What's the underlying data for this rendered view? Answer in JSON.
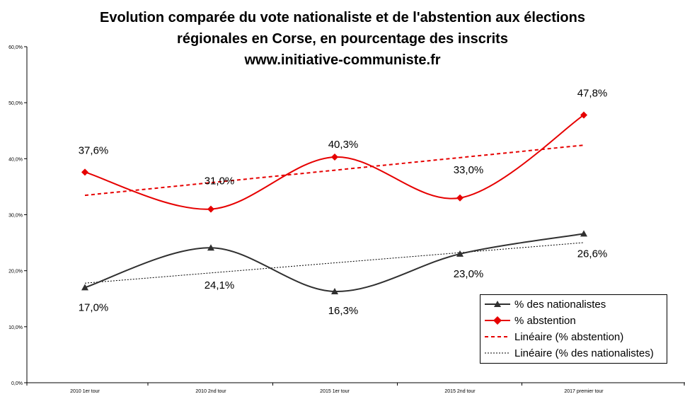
{
  "header": {
    "line1": "Evolution comparée du vote nationaliste et de l'abstention aux élections",
    "line2": "régionales en Corse, en pourcentage des inscrits",
    "line3": "www.initiative-communiste.fr"
  },
  "colors": {
    "abstention": "#e60000",
    "nationalistes": "#303030",
    "trend_abstention": "#e60000",
    "trend_nationalistes": "#000000"
  },
  "chart_data": {
    "type": "line",
    "title": "Evolution comparée du vote nationaliste et de l'abstention aux élections régionales en Corse, en pourcentage des inscrits",
    "categories": [
      "2010 1er tour",
      "2010 2nd tour",
      "2015 1er tour",
      "2015 2nd tour",
      "2017 premier tour"
    ],
    "ylim": [
      0,
      60
    ],
    "yticks": [
      0,
      10,
      20,
      30,
      40,
      50,
      60
    ],
    "ytick_labels": [
      "0,0%",
      "10,0%",
      "20,0%",
      "30,0%",
      "40,0%",
      "50,0%",
      "60,0%"
    ],
    "grid": false,
    "legend_position": "bottom-right",
    "series": [
      {
        "name": "% des nationalistes",
        "values": [
          17.0,
          24.1,
          16.3,
          23.0,
          26.6
        ],
        "labels": [
          "17,0%",
          "24,1%",
          "16,3%",
          "23,0%",
          "26,6%"
        ],
        "marker": "triangle",
        "smooth": true
      },
      {
        "name": "% abstention",
        "values": [
          37.6,
          31.0,
          40.3,
          33.0,
          47.8
        ],
        "labels": [
          "37,6%",
          "31,0%",
          "40,3%",
          "33,0%",
          "47,8%"
        ],
        "marker": "diamond",
        "smooth": true
      }
    ],
    "trendlines": [
      {
        "name": "Linéaire (% abstention)",
        "of": "% abstention",
        "style": "dashed"
      },
      {
        "name": "Linéaire (% des nationalistes)",
        "of": "% des nationalistes",
        "style": "dotted"
      }
    ]
  }
}
